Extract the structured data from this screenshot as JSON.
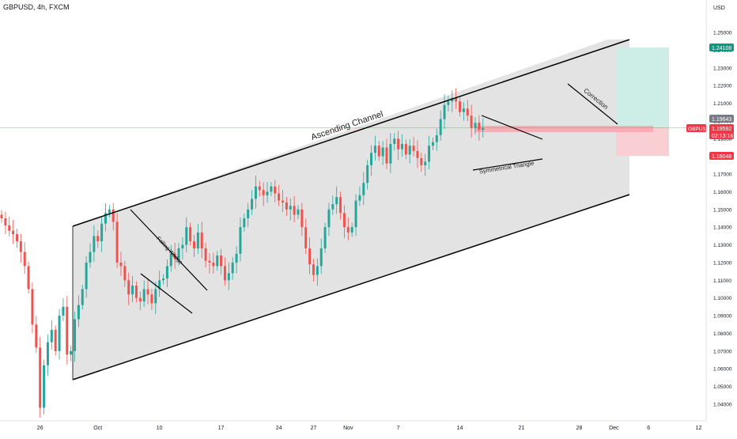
{
  "header": {
    "symbol_line": "GBPUSD, 4h, FXCM"
  },
  "axis": {
    "currency": "USD"
  },
  "colors": {
    "up": "#26a69a",
    "down": "#ef5350",
    "channel_fill": "#e0e0e0",
    "tp_zone": "#cdeee6",
    "sl_zone": "#f9cfd4",
    "entry_zone": "#f6a4ab",
    "tag_green": "#089981",
    "tag_red": "#f23645",
    "tag_gray": "#787b86"
  },
  "tags": {
    "tp": "1.24108",
    "current": "1.19643",
    "symbol": "GBPUSD",
    "last": "1.19592",
    "countdown": "02:13:16",
    "sl": "1.18048"
  },
  "chart_data": {
    "type": "candlestick",
    "title": "GBPUSD, 4h, FXCM",
    "ylim": [
      1.032,
      1.272
    ],
    "y_ticks": [
      "1.25000",
      "1.24000",
      "1.23000",
      "1.22000",
      "1.21000",
      "1.20000",
      "1.19000",
      "1.18000",
      "1.17000",
      "1.16000",
      "1.15000",
      "1.14000",
      "1.13000",
      "1.12000",
      "1.11000",
      "1.10000",
      "1.09000",
      "1.08000",
      "1.07000",
      "1.06000",
      "1.05000",
      "1.04000"
    ],
    "x_ticks": [
      {
        "label": "26",
        "bar": 10
      },
      {
        "label": "Oct",
        "bar": 25
      },
      {
        "label": "10",
        "bar": 41
      },
      {
        "label": "17",
        "bar": 57
      },
      {
        "label": "24",
        "bar": 72
      },
      {
        "label": "27",
        "bar": 81
      },
      {
        "label": "Nov",
        "bar": 90
      },
      {
        "label": "7",
        "bar": 103
      },
      {
        "label": "14",
        "bar": 119
      },
      {
        "label": "21",
        "bar": 135
      },
      {
        "label": "28",
        "bar": 150
      },
      {
        "label": "Dec",
        "bar": 159
      },
      {
        "label": "6",
        "bar": 168
      },
      {
        "label": "12",
        "bar": 181
      }
    ],
    "closes": [
      1.145,
      1.141,
      1.138,
      1.136,
      1.132,
      1.126,
      1.118,
      1.105,
      1.085,
      1.072,
      1.038,
      1.062,
      1.075,
      1.082,
      1.07,
      1.09,
      1.095,
      1.068,
      1.07,
      1.088,
      1.096,
      1.105,
      1.12,
      1.126,
      1.135,
      1.132,
      1.142,
      1.148,
      1.15,
      1.143,
      1.12,
      1.118,
      1.11,
      1.102,
      1.107,
      1.1,
      1.098,
      1.105,
      1.102,
      1.097,
      1.105,
      1.11,
      1.111,
      1.118,
      1.125,
      1.122,
      1.128,
      1.13,
      1.14,
      1.132,
      1.128,
      1.137,
      1.128,
      1.121,
      1.12,
      1.118,
      1.124,
      1.118,
      1.11,
      1.114,
      1.12,
      1.125,
      1.14,
      1.145,
      1.15,
      1.156,
      1.163,
      1.161,
      1.158,
      1.16,
      1.163,
      1.159,
      1.155,
      1.154,
      1.15,
      1.152,
      1.147,
      1.15,
      1.14,
      1.128,
      1.119,
      1.113,
      1.118,
      1.128,
      1.14,
      1.15,
      1.153,
      1.157,
      1.148,
      1.14,
      1.137,
      1.14,
      1.155,
      1.158,
      1.165,
      1.175,
      1.182,
      1.186,
      1.18,
      1.185,
      1.176,
      1.187,
      1.19,
      1.184,
      1.187,
      1.181,
      1.186,
      1.183,
      1.179,
      1.175,
      1.177,
      1.186,
      1.188,
      1.192,
      1.201,
      1.209,
      1.211,
      1.213,
      1.211,
      1.205,
      1.207,
      1.203,
      1.196,
      1.199,
      1.195,
      1.196
    ],
    "annotations": [
      "Ascending Channel",
      "Falling Wedge",
      "Symmetrical Triangle",
      "Correction"
    ]
  }
}
